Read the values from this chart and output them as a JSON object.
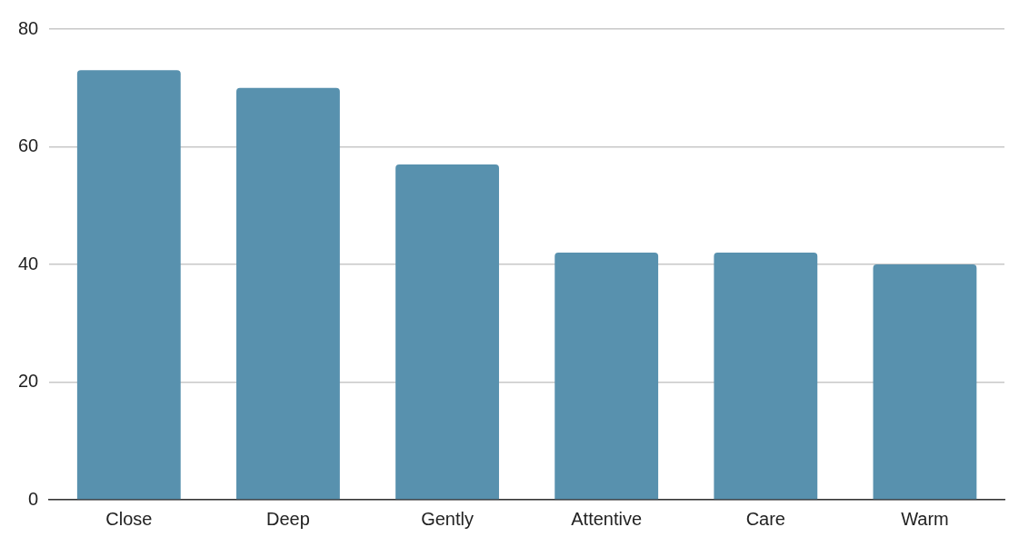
{
  "chart_data": {
    "type": "bar",
    "categories": [
      "Close",
      "Deep",
      "Gently",
      "Attentive",
      "Care",
      "Warm"
    ],
    "values": [
      73,
      70,
      57,
      42,
      42,
      40
    ],
    "color": "#5891ae",
    "ylim": [
      0,
      80
    ],
    "yticks": [
      0,
      20,
      40,
      60,
      80
    ],
    "grid": "y",
    "legend": false
  }
}
